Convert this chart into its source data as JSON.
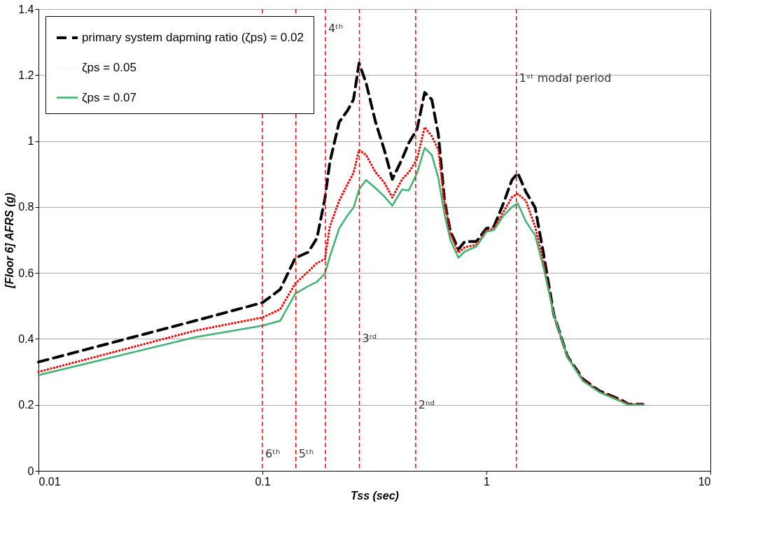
{
  "chart_data": {
    "type": "line",
    "xlabel": "Tss (sec)",
    "ylabel": "[Floor 6] AFRS (g)",
    "log": "x",
    "xlim": [
      0.01,
      10
    ],
    "xticks": [
      0.01,
      0.1,
      1,
      10
    ],
    "ylim": [
      0,
      1.4
    ],
    "yticks": [
      0,
      0.2,
      0.4,
      0.6,
      0.8,
      1,
      1.2,
      1.4
    ],
    "grid": "y",
    "legend": "top left",
    "x": [
      0.01,
      0.05,
      0.1,
      0.12,
      0.14,
      0.16,
      0.175,
      0.19,
      0.2,
      0.22,
      0.24,
      0.255,
      0.27,
      0.29,
      0.32,
      0.35,
      0.38,
      0.42,
      0.45,
      0.49,
      0.53,
      0.57,
      0.61,
      0.65,
      0.69,
      0.75,
      0.8,
      0.9,
      1.0,
      1.08,
      1.18,
      1.3,
      1.38,
      1.5,
      1.65,
      1.8,
      2.0,
      2.3,
      2.7,
      3.2,
      4.0,
      4.3,
      5.0
    ],
    "series": [
      {
        "name": "primary system dapming ratio (ζps) = 0.02",
        "color": "#000000",
        "line_style": "dashed",
        "values": [
          0.33,
          0.455,
          0.51,
          0.55,
          0.645,
          0.663,
          0.705,
          0.825,
          0.937,
          1.057,
          1.093,
          1.126,
          1.236,
          1.177,
          1.057,
          0.973,
          0.884,
          0.945,
          0.994,
          1.036,
          1.147,
          1.126,
          1.02,
          0.82,
          0.726,
          0.672,
          0.695,
          0.695,
          0.735,
          0.741,
          0.804,
          0.882,
          0.903,
          0.846,
          0.798,
          0.657,
          0.474,
          0.347,
          0.278,
          0.242,
          0.215,
          0.202,
          0.202
        ]
      },
      {
        "name": "ζps = 0.05",
        "color": "#ff0000",
        "line_style": "dotted",
        "values": [
          0.3,
          0.425,
          0.465,
          0.49,
          0.568,
          0.604,
          0.63,
          0.642,
          0.741,
          0.819,
          0.87,
          0.903,
          0.973,
          0.958,
          0.905,
          0.874,
          0.829,
          0.884,
          0.905,
          0.945,
          1.042,
          1.015,
          0.973,
          0.811,
          0.72,
          0.661,
          0.678,
          0.685,
          0.73,
          0.735,
          0.78,
          0.83,
          0.84,
          0.819,
          0.74,
          0.63,
          0.47,
          0.345,
          0.275,
          0.24,
          0.212,
          0.202,
          0.202
        ]
      },
      {
        "name": "ζps = 0.07",
        "color": "#3cb371",
        "line_style": "solid",
        "values": [
          0.29,
          0.405,
          0.44,
          0.455,
          0.537,
          0.56,
          0.573,
          0.598,
          0.65,
          0.735,
          0.775,
          0.798,
          0.853,
          0.882,
          0.857,
          0.832,
          0.804,
          0.853,
          0.85,
          0.903,
          0.979,
          0.958,
          0.888,
          0.777,
          0.7,
          0.646,
          0.665,
          0.68,
          0.725,
          0.73,
          0.77,
          0.8,
          0.811,
          0.756,
          0.714,
          0.615,
          0.474,
          0.345,
          0.272,
          0.238,
          0.21,
          0.2,
          0.2
        ]
      }
    ],
    "ref_lines": [
      {
        "axis": "x",
        "value": 0.1,
        "color": "#ff0000",
        "line_style": "dashed"
      },
      {
        "axis": "x",
        "value": 0.141,
        "color": "#ff0000",
        "line_style": "dashed"
      },
      {
        "axis": "x",
        "value": 0.191,
        "color": "#ff0000",
        "line_style": "dashed"
      },
      {
        "axis": "x",
        "value": 0.271,
        "color": "#ff0000",
        "line_style": "dashed"
      },
      {
        "axis": "x",
        "value": 0.483,
        "color": "#ff0000",
        "line_style": "dashed"
      },
      {
        "axis": "x",
        "value": 1.36,
        "color": "#ff0000",
        "line_style": "dashed"
      }
    ],
    "annotations": [
      {
        "text": "6ᵗʰ",
        "x": 0.1,
        "y": 0.05
      },
      {
        "text": "5ᵗʰ",
        "x": 0.141,
        "y": 0.05
      },
      {
        "text": "4ᵗʰ",
        "x": 0.191,
        "y": 1.34
      },
      {
        "text": "3ʳᵈ",
        "x": 0.271,
        "y": 0.4
      },
      {
        "text": "2ⁿᵈ",
        "x": 0.483,
        "y": 0.2
      },
      {
        "text": "1ˢᵗ  modal period",
        "x": 1.36,
        "y": 1.19
      }
    ]
  }
}
